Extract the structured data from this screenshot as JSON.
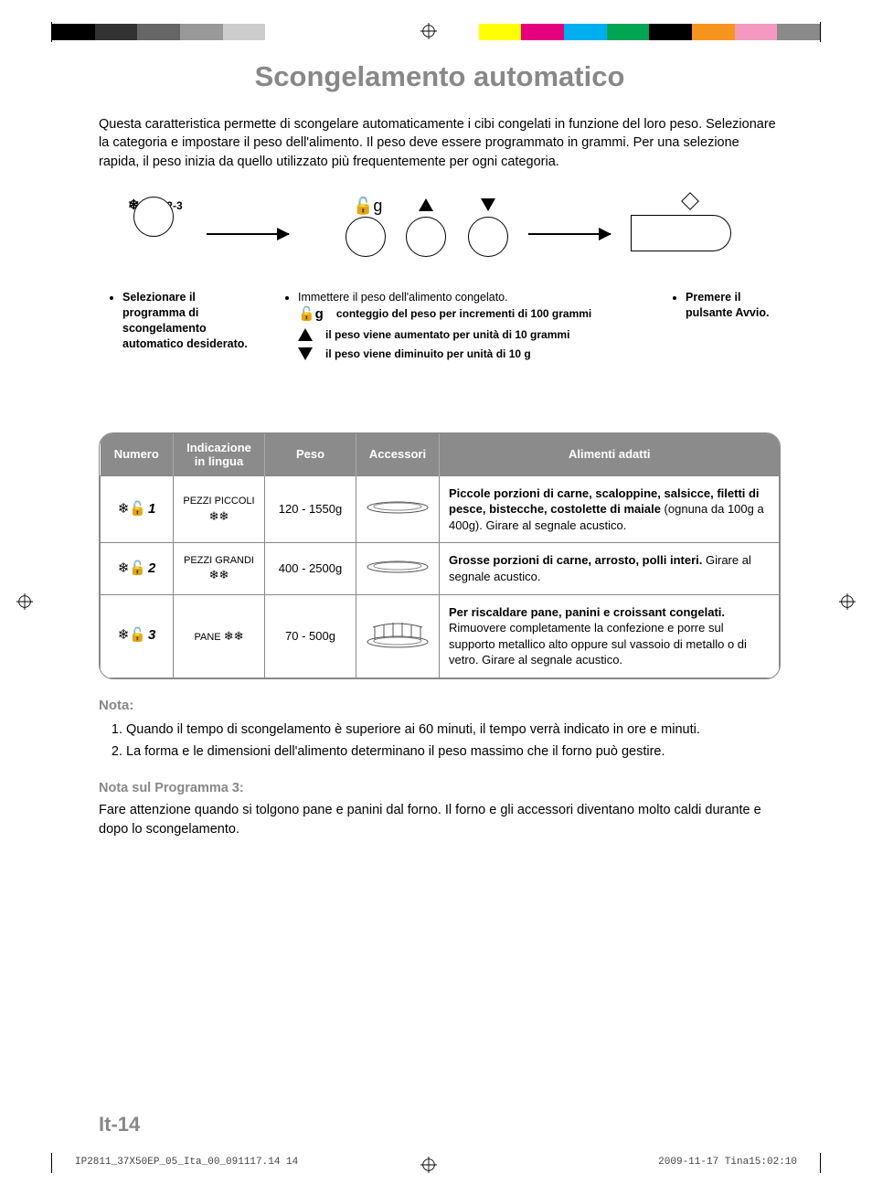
{
  "colorbar": [
    "#000000",
    "#333333",
    "#666666",
    "#999999",
    "#cccccc",
    "#ffffff",
    "#ffffff",
    "#ffffff",
    "#ffffff",
    "#ffffff",
    "#ffff00",
    "#e6007e",
    "#00aeef",
    "#00a651",
    "#000000",
    "#f7941d",
    "#f49ac1",
    "#8a8a8a"
  ],
  "title": "Scongelamento automatico",
  "intro": "Questa caratteristica permette di scongelare automaticamente i cibi congelati in funzione del loro peso. Selezionare la categoria e impostare il peso dell'alimento. Il peso deve essere programmato in grammi. Per una selezione rapida, il peso inizia da quello utilizzato più frequentemente per ogni categoria.",
  "diagram": {
    "label123": "1-2-3",
    "steps": {
      "col1": "Selezionare il programma di scongelamento automatico desiderato.",
      "col2head": "Immettere il peso dell'alimento congelato.",
      "col2rows": {
        "r1": "conteggio del peso per incrementi di 100 grammi",
        "r2": "il peso viene aumentato per unità di 10 grammi",
        "r3": "il peso viene diminuito per unità di 10 g"
      },
      "col3": "Premere il pulsante Avvio."
    }
  },
  "table": {
    "headers": {
      "c1": "Numero",
      "c2": "Indicazione in lingua",
      "c3": "Peso",
      "c4": "Accessori",
      "c5": "Alimenti adatti"
    },
    "rows": [
      {
        "num": "1",
        "indic": "PEZZI PICCOLI",
        "peso": "120 - 1550g",
        "accessory": "tray",
        "food_bold": "Piccole porzioni di carne, scaloppine, salsicce, filetti di pesce, bistecche, costolette di maiale",
        "food_rest": " (ognuna da 100g a 400g). Girare al segnale acustico."
      },
      {
        "num": "2",
        "indic": "PEZZI GRANDI",
        "peso": "400 - 2500g",
        "accessory": "tray",
        "food_bold": "Grosse porzioni di carne, arrosto, polli interi.",
        "food_rest": " Girare al segnale acustico."
      },
      {
        "num": "3",
        "indic": "PANE",
        "peso": "70 - 500g",
        "accessory": "rack",
        "food_bold": "Per riscaldare pane, panini e croissant congelati.",
        "food_rest": " Rimuovere completamente la confezione e porre sul supporto metallico alto oppure sul vassoio di metallo o di vetro. Girare al segnale acustico."
      }
    ]
  },
  "notes": {
    "h": "Nota:",
    "items": [
      "Quando il tempo di scongelamento è superiore ai 60 minuti, il tempo verrà indicato in ore e minuti.",
      "La forma e le dimensioni dell'alimento determinano il peso massimo che il forno può gestire."
    ],
    "subh": "Nota sul Programma 3:",
    "subp": "Fare attenzione quando si tolgono pane e panini dal forno. Il forno e gli accessori diventano molto caldi durante e dopo lo scongelamento."
  },
  "pagefoot": "It-14",
  "printfoot": {
    "l": "IP2811_37X50EP_05_Ita_00_091117.14   14",
    "r": "2009-11-17   Tina15:02:10"
  }
}
